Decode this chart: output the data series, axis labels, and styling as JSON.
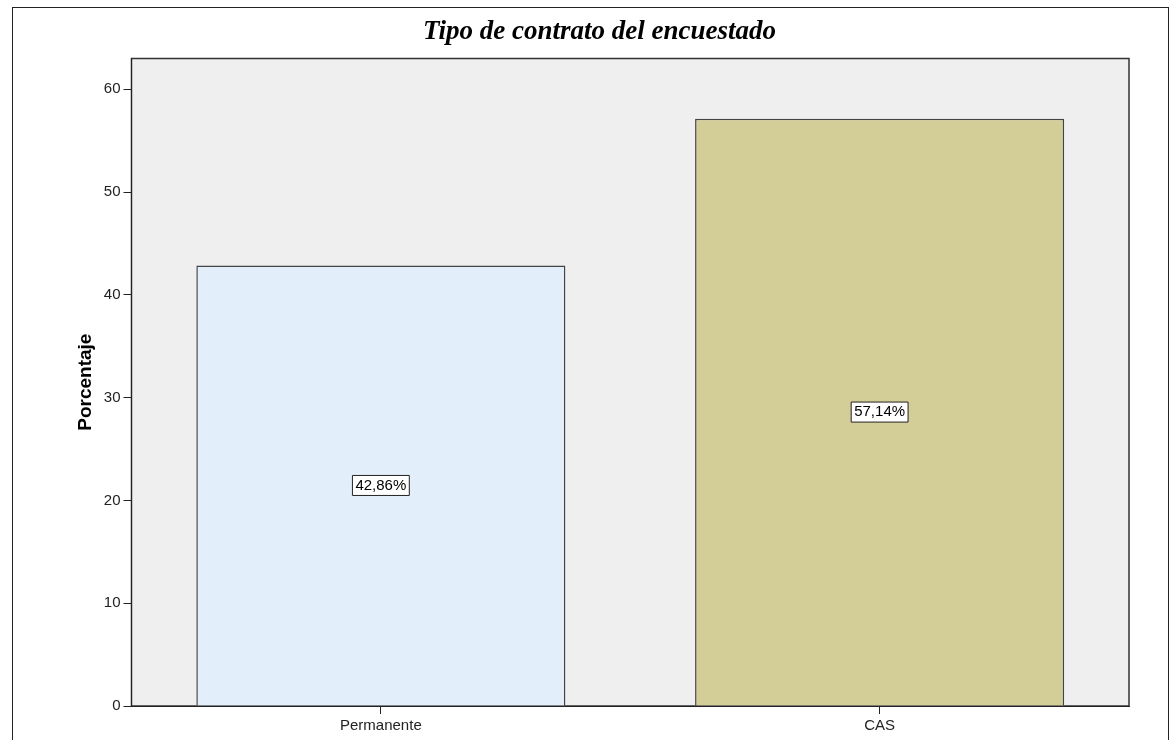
{
  "chart_data": {
    "type": "bar",
    "title": "Tipo de contrato del encuestado",
    "ylabel": "Porcentaje",
    "categories": [
      "Permanente",
      "CAS"
    ],
    "values": [
      42.86,
      57.14
    ],
    "colors": [
      "#e2eefa",
      "#d3ce98"
    ],
    "value_labels": [
      "42,86%",
      "57,14%"
    ],
    "ylim": [
      0,
      63
    ],
    "yticks": [
      0,
      10,
      20,
      30,
      40,
      50,
      60
    ],
    "grid": false,
    "legend": false
  }
}
